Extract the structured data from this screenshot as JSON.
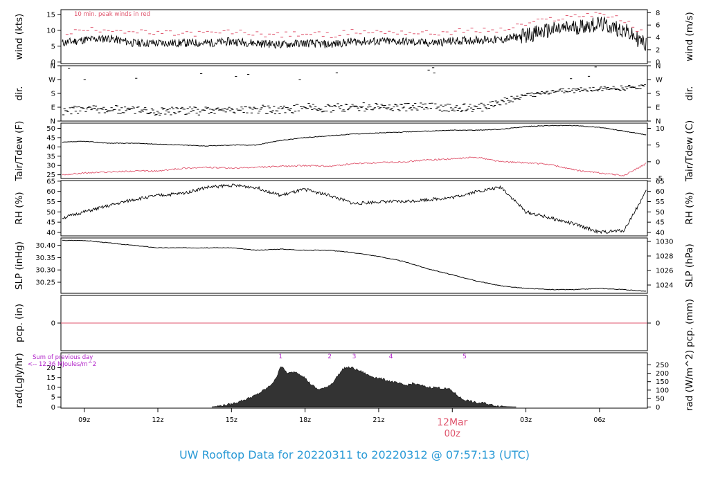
{
  "title": "UW Rooftop Data for 20220311  to  20220312 @ 07:57:13  (UTC)",
  "colors": {
    "wind": "#000000",
    "peak": "#df536b",
    "tair": "#000000",
    "tdew": "#df536b",
    "pcp": "#df536b",
    "rad": "#333333",
    "hour_label": "#b01fc8",
    "note": "#b01fc8",
    "date": "#df536b",
    "title": "#2a9ad6"
  },
  "x_axis": {
    "ticks": [
      "09z",
      "12z",
      "15z",
      "18z",
      "21z",
      "00z",
      "03z",
      "06z"
    ],
    "tick_hours": [
      9,
      12,
      15,
      18,
      21,
      24,
      27,
      30
    ],
    "date_label": "12Mar",
    "date_time": "00z",
    "xlim_hours": [
      8.05,
      31.95
    ]
  },
  "panels": {
    "wind": {
      "ylabel": "wind (kts)",
      "ylabel_right": "wind (m/s)",
      "note": "10 min. peak winds in red",
      "ticks": [
        "0",
        "5",
        "10",
        "15"
      ],
      "tick_values": [
        0,
        5,
        10,
        15
      ],
      "ticks_right": [
        "0",
        "2",
        "4",
        "6",
        "8"
      ],
      "tick_values_right": [
        0,
        2,
        4,
        6,
        8
      ],
      "ylim": [
        -0.5,
        16.5
      ]
    },
    "dir": {
      "ylabel": "dir.",
      "ylabel_right": "dir.",
      "ticks": [
        "N",
        "E",
        "S",
        "W",
        "N"
      ],
      "tick_values": [
        0,
        90,
        180,
        270,
        360
      ],
      "ylim": [
        0,
        360
      ]
    },
    "temp": {
      "ylabel": "Tair/Tdew (F)",
      "ylabel_right": "Tair/Tdew (C)",
      "ticks": [
        "25",
        "30",
        "35",
        "40",
        "45",
        "50"
      ],
      "tick_values": [
        25,
        30,
        35,
        40,
        45,
        50
      ],
      "ticks_right": [
        "-5",
        "0",
        "5",
        "10"
      ],
      "tick_values_right": [
        -5,
        0,
        5,
        10
      ],
      "ylim": [
        23.0,
        52.8
      ]
    },
    "rh": {
      "ylabel": "RH (%)",
      "ylabel_right": "RH (%)",
      "ticks": [
        "40",
        "45",
        "50",
        "55",
        "60",
        "65"
      ],
      "tick_values": [
        40,
        45,
        50,
        55,
        60,
        65
      ],
      "ticks_right": [
        "40",
        "45",
        "50",
        "55",
        "60",
        "65"
      ],
      "tick_values_right": [
        40,
        45,
        50,
        55,
        60,
        65
      ],
      "ylim": [
        38.3,
        65.3
      ]
    },
    "slp": {
      "ylabel": "SLP (inHg)",
      "ylabel_right": "SLP (hPa)",
      "ticks": [
        "30.25",
        "30.30",
        "30.35",
        "30.40"
      ],
      "tick_values": [
        30.25,
        30.3,
        30.35,
        30.4
      ],
      "ticks_right": [
        "1024",
        "1026",
        "1028",
        "1030"
      ],
      "tick_values_right": [
        1024,
        1026,
        1028,
        1030
      ],
      "ylim": [
        30.205,
        30.43
      ]
    },
    "pcp": {
      "ylabel": "pcp. (in)",
      "ylabel_right": "pcp. (mm)",
      "ticks": [
        "0"
      ],
      "tick_values": [
        0
      ],
      "ticks_right": [
        "0"
      ],
      "tick_values_right": [
        0
      ],
      "ylim": [
        -1,
        1
      ]
    },
    "rad": {
      "ylabel": "rad(Lgly/hr)",
      "ylabel_right": "rad (W/m^2)",
      "ticks": [
        "0",
        "5",
        "10",
        "15",
        "20"
      ],
      "tick_values": [
        0,
        5,
        10,
        15,
        20
      ],
      "ticks_right": [
        "0",
        "50",
        "100",
        "150",
        "200",
        "250"
      ],
      "tick_values_right": [
        0,
        50,
        100,
        150,
        200,
        250
      ],
      "ylim": [
        -0.6,
        27.6
      ],
      "note_line1": "Sum of previous day",
      "note_line2": "<-- 12.36 MJoules/m^2",
      "hour_labels": [
        "1",
        "2",
        "3",
        "4",
        "5"
      ],
      "hour_label_times": [
        17.0,
        19.0,
        20.0,
        21.5,
        24.5
      ]
    }
  },
  "chart_data": [
    {
      "type": "line",
      "ylabel": "wind (kts)",
      "ylabel_right": "wind (m/s)",
      "annotation": "10 min. peak winds in red",
      "series": [
        {
          "x": [
            8.1,
            9,
            10,
            11,
            12,
            13,
            14,
            15,
            16,
            17,
            18,
            19,
            20,
            21,
            22,
            23,
            24,
            25,
            26,
            27,
            28,
            29,
            30,
            31,
            31.9
          ],
          "y": [
            6,
            7,
            7.5,
            6,
            6,
            6,
            6,
            6.5,
            6,
            5.5,
            6,
            5.5,
            6.5,
            6.5,
            6.5,
            6,
            6.5,
            7,
            7,
            8.5,
            10,
            11,
            12,
            10,
            5.5
          ]
        },
        {
          "name": "10 min. peak winds",
          "x": [
            8.1,
            9,
            10,
            11,
            12,
            13,
            14,
            15,
            16,
            17,
            18,
            19,
            20,
            21,
            22,
            23,
            24,
            25,
            26,
            27,
            28,
            29,
            30,
            31,
            31.9
          ],
          "y": [
            9,
            10,
            10.5,
            9.5,
            9,
            9,
            9,
            9.5,
            9,
            8.5,
            9,
            8.5,
            9.5,
            9.5,
            9.5,
            9,
            9.5,
            10,
            10,
            12,
            13.5,
            14.5,
            15.5,
            13,
            8.5
          ]
        }
      ],
      "ylim": [
        0,
        16
      ]
    },
    {
      "type": "scatter",
      "ylabel": "dir.",
      "series": [
        {
          "x": [
            8.1,
            9,
            10,
            11,
            12,
            13,
            14,
            15,
            16,
            17,
            18,
            19,
            20,
            21,
            22,
            23,
            24,
            25,
            26,
            27,
            28,
            29,
            30,
            31,
            31.9
          ],
          "y": [
            60,
            80,
            75,
            70,
            65,
            70,
            65,
            75,
            80,
            70,
            90,
            85,
            90,
            95,
            90,
            90,
            90,
            80,
            130,
            165,
            190,
            200,
            210,
            215,
            230
          ]
        }
      ],
      "ylim": [
        0,
        360
      ]
    },
    {
      "type": "line",
      "ylabel": "Tair/Tdew (F)",
      "ylabel_right": "Tair/Tdew (C)",
      "series": [
        {
          "name": "Tair",
          "x": [
            8.1,
            9,
            10,
            11,
            12,
            13,
            14,
            15,
            16,
            17,
            18,
            19,
            20,
            21,
            22,
            23,
            24,
            25,
            26,
            27,
            28,
            29,
            30,
            31,
            31.9
          ],
          "y": [
            42.5,
            43,
            42,
            42,
            41.5,
            41,
            40.5,
            41,
            41,
            43.5,
            45,
            46,
            47,
            47.5,
            48,
            48.5,
            49,
            49,
            49.5,
            51,
            51.5,
            51.5,
            50.5,
            48.5,
            46.5
          ]
        },
        {
          "name": "Tdew",
          "x": [
            8.1,
            9,
            10,
            11,
            12,
            13,
            14,
            15,
            16,
            17,
            18,
            19,
            20,
            21,
            22,
            23,
            24,
            25,
            26,
            27,
            28,
            29,
            30,
            31,
            31.9
          ],
          "y": [
            25,
            26,
            26.5,
            27,
            27,
            28.5,
            29,
            28.5,
            29,
            29.5,
            30,
            29.5,
            31,
            31.5,
            32,
            33,
            33.5,
            34.5,
            32,
            31.5,
            30.5,
            27.5,
            26,
            24.5,
            31
          ]
        }
      ],
      "ylim": [
        23,
        53
      ]
    },
    {
      "type": "line",
      "ylabel": "RH (%)",
      "series": [
        {
          "x": [
            8.1,
            9,
            10,
            11,
            12,
            13,
            14,
            15,
            16,
            17,
            18,
            19,
            20,
            21,
            22,
            23,
            24,
            25,
            26,
            27,
            28,
            29,
            30,
            31,
            31.9
          ],
          "y": [
            47,
            50,
            53,
            56,
            58,
            59,
            62,
            63,
            62,
            58,
            61,
            58,
            54,
            55,
            55,
            56,
            57,
            60,
            62,
            50,
            47,
            44,
            40,
            41,
            60
          ]
        }
      ],
      "ylim": [
        38,
        65
      ]
    },
    {
      "type": "line",
      "ylabel": "SLP (inHg)",
      "ylabel_right": "SLP (hPa)",
      "series": [
        {
          "x": [
            8.1,
            9,
            10,
            11,
            12,
            13,
            14,
            15,
            16,
            17,
            18,
            19,
            20,
            21,
            22,
            23,
            24,
            25,
            26,
            27,
            28,
            29,
            30,
            31,
            31.9
          ],
          "y": [
            30.42,
            30.42,
            30.41,
            30.4,
            30.39,
            30.39,
            30.39,
            30.39,
            30.38,
            30.385,
            30.38,
            30.38,
            30.37,
            30.355,
            30.335,
            30.305,
            30.28,
            30.255,
            30.235,
            30.225,
            30.22,
            30.22,
            30.225,
            30.22,
            30.213
          ]
        }
      ],
      "ylim": [
        30.2,
        30.43
      ]
    },
    {
      "type": "line",
      "ylabel": "pcp. (in)",
      "ylabel_right": "pcp. (mm)",
      "series": [
        {
          "x": [
            8.1,
            31.9
          ],
          "y": [
            0,
            0
          ]
        }
      ]
    },
    {
      "type": "area",
      "ylabel": "rad(Lgly/hr)",
      "ylabel_right": "rad (W/m^2)",
      "annotation": "Sum of previous day <-- 12.36 MJoules/m^2",
      "series": [
        {
          "x": [
            8.1,
            14.2,
            14.5,
            15,
            15.5,
            16,
            16.5,
            16.8,
            17,
            17.3,
            17.6,
            17.9,
            18.2,
            18.5,
            18.8,
            19.1,
            19.4,
            19.6,
            19.9,
            20.3,
            20.6,
            20.9,
            21.2,
            21.5,
            21.8,
            22.1,
            22.4,
            22.7,
            23.0,
            23.3,
            23.6,
            23.9,
            24.1,
            24.4,
            24.7,
            25.0,
            25.3,
            25.6,
            25.9,
            26.2,
            26.5,
            31.9
          ],
          "y": [
            0,
            0,
            0.5,
            1.5,
            3.5,
            6,
            10,
            14,
            21,
            17,
            18,
            16,
            12,
            9,
            9.5,
            12,
            17,
            20,
            20,
            18,
            16,
            15,
            14,
            13,
            12,
            11,
            12,
            11,
            10,
            10,
            9.5,
            9,
            7,
            4,
            3,
            2,
            2,
            1,
            0.5,
            0.2,
            0,
            0
          ]
        }
      ],
      "ylim": [
        0,
        27
      ]
    }
  ]
}
